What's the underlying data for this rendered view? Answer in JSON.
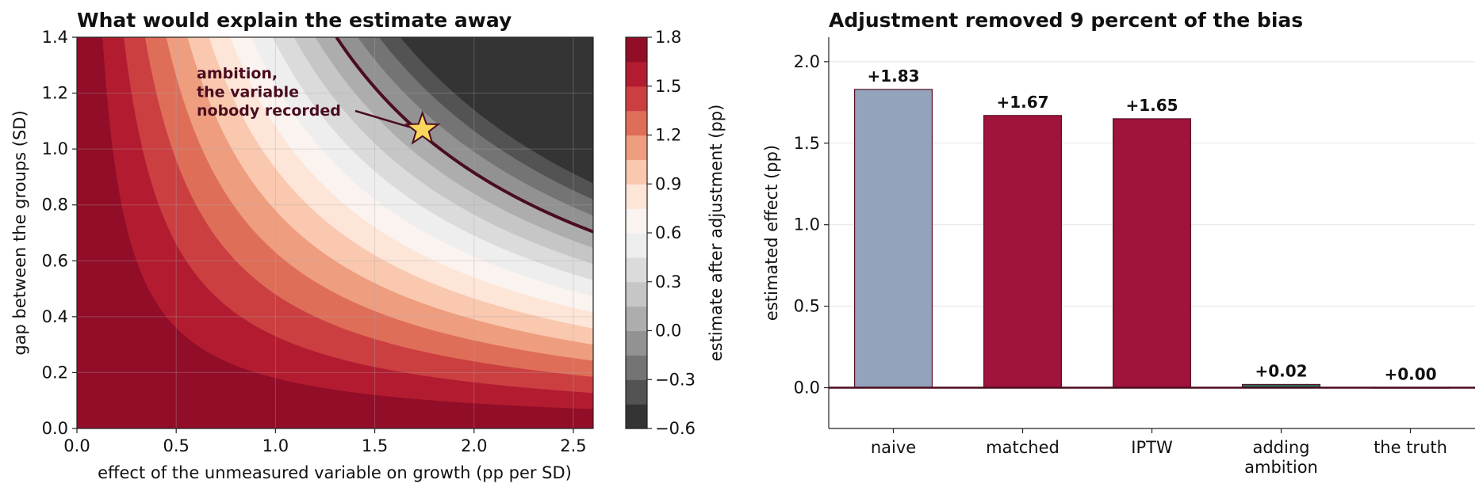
{
  "chart_data": [
    {
      "type": "heatmap",
      "title": "What would explain the estimate away",
      "xlabel": "effect of the unmeasured variable on growth (pp per SD)",
      "ylabel": "gap between the groups (SD)",
      "xlim": [
        0,
        2.6
      ],
      "ylim": [
        0,
        1.4
      ],
      "x_ticks": [
        "0.0",
        "0.5",
        "1.0",
        "1.5",
        "2.0",
        "2.5"
      ],
      "y_ticks": [
        "0.0",
        "0.2",
        "0.4",
        "0.6",
        "0.8",
        "1.0",
        "1.2",
        "1.4"
      ],
      "naive_estimate": 1.83,
      "zero_contour": true,
      "colorbar": {
        "label": "estimate after adjustment (pp)",
        "range": [
          -0.6,
          1.8
        ],
        "level_step": 0.15,
        "ticks": [
          "1.8",
          "1.5",
          "1.2",
          "0.9",
          "0.6",
          "0.3",
          "0.0",
          "−0.3",
          "−0.6"
        ]
      },
      "marker": {
        "x": 1.74,
        "y": 1.07,
        "shape": "star",
        "color": "#f9d65c"
      },
      "annotation": {
        "lines": [
          "ambition,",
          "the variable",
          "nobody recorded"
        ]
      },
      "colors": {
        "contour": "#4a0d1f",
        "low": "#262626",
        "mid": "#f7f7f7",
        "high": "#7f0c25"
      }
    },
    {
      "type": "bar",
      "title": "Adjustment removed 9 percent of the bias",
      "xlabel": "",
      "ylabel": "estimated effect (pp)",
      "ylim": [
        -0.25,
        2.15
      ],
      "y_ticks": [
        "0.0",
        "0.5",
        "1.0",
        "1.5",
        "2.0"
      ],
      "categories": [
        [
          "naive"
        ],
        [
          "matched"
        ],
        [
          "IPTW"
        ],
        [
          "adding",
          "ambition"
        ],
        [
          "the truth"
        ]
      ],
      "values": [
        1.83,
        1.67,
        1.65,
        0.02,
        0.0
      ],
      "labels": [
        "+1.83",
        "+1.67",
        "+1.65",
        "+0.02",
        "+0.00"
      ],
      "colors": [
        "#93a3bb",
        "#a0133a",
        "#a0133a",
        "#2a6e5b",
        "#a0133a"
      ],
      "edge_color": "#5a1028",
      "baseline_color": "#4a0d1f"
    }
  ]
}
